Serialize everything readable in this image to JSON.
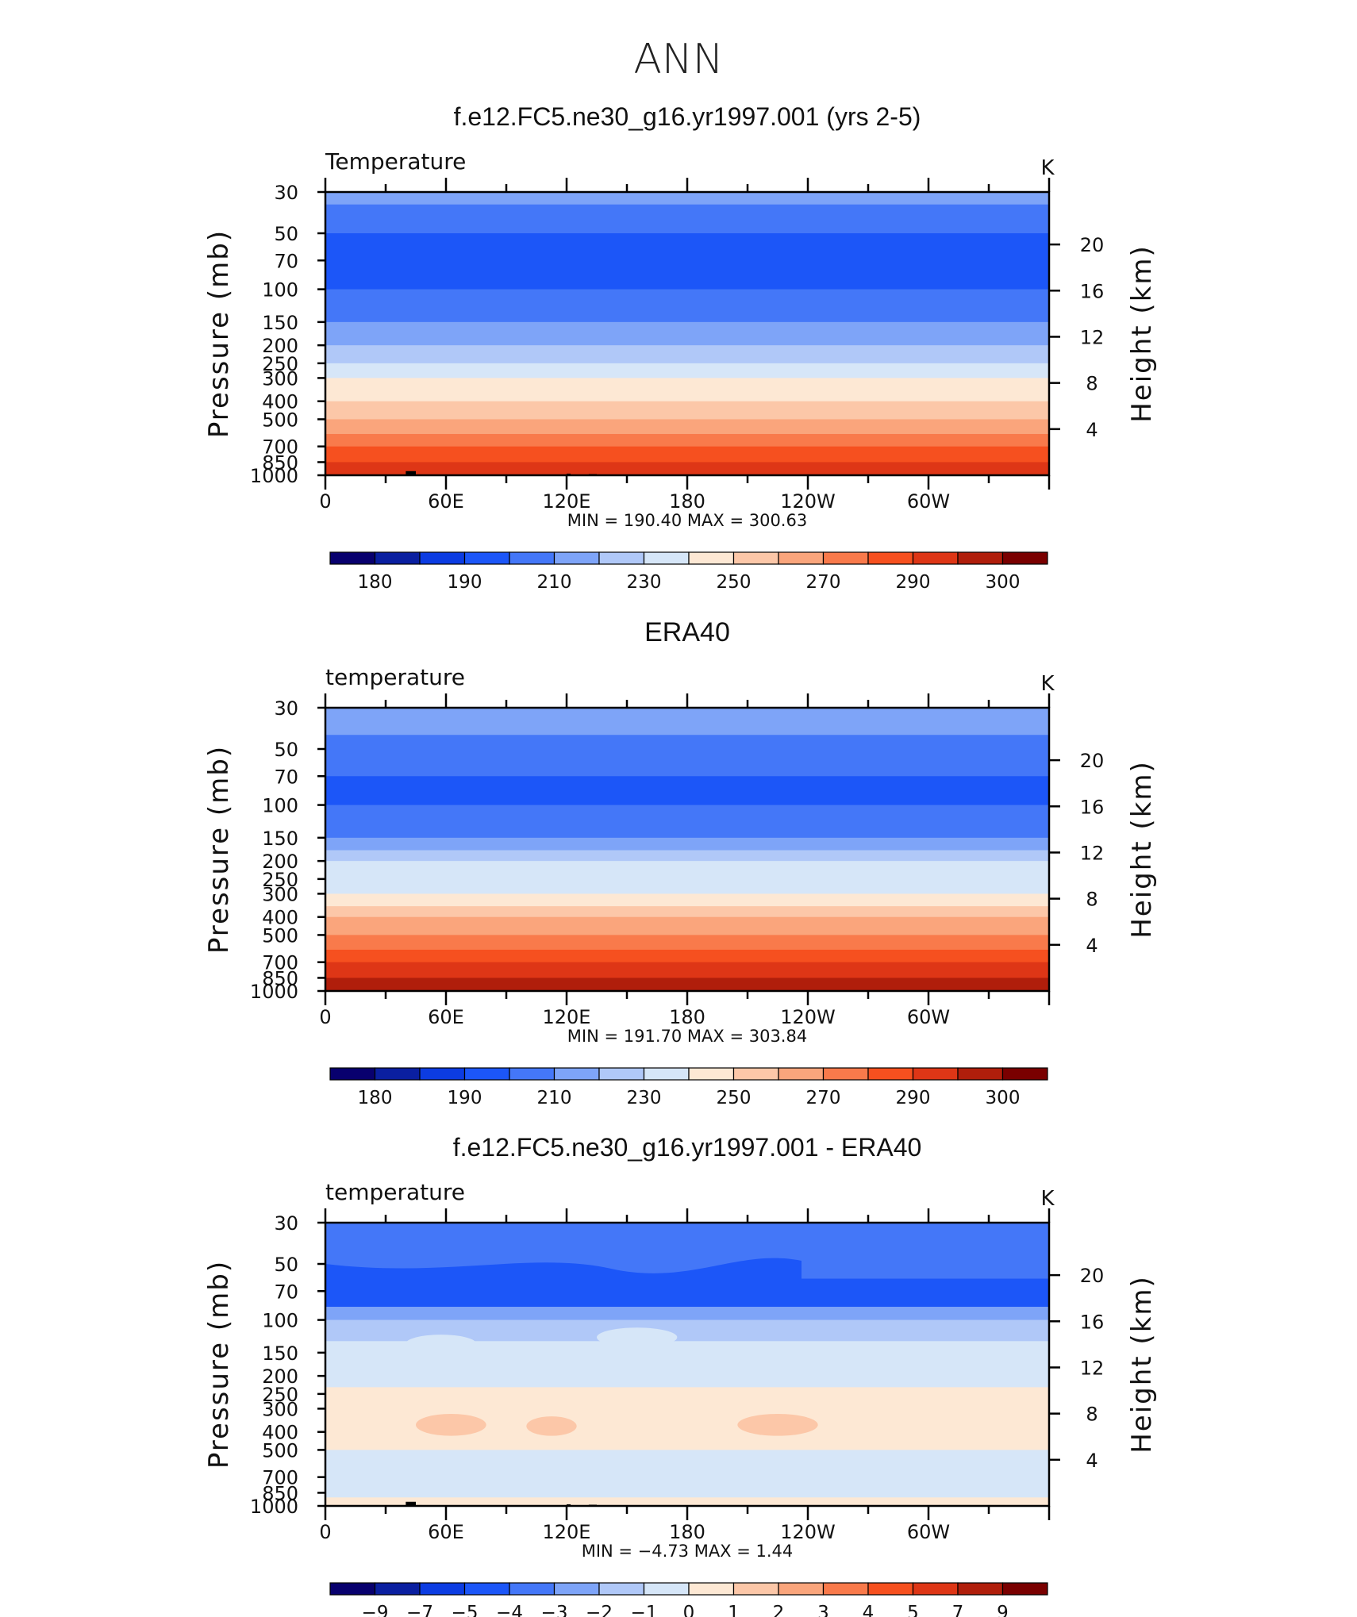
{
  "page": {
    "title": "ANN"
  },
  "colors": {
    "temp_palette": [
      "#08006e",
      "#0a1fa0",
      "#0c3ce2",
      "#1c56f8",
      "#4477f8",
      "#7ea4f8",
      "#b0c8f8",
      "#d6e6f8",
      "#fde8d4",
      "#fcc7a8",
      "#faa57c",
      "#f97a4b",
      "#f6501f",
      "#de3616",
      "#b01e0b",
      "#7a0000"
    ],
    "diff_palette": [
      "#08006e",
      "#0a1fa0",
      "#0c3ce2",
      "#1c56f8",
      "#4477f8",
      "#7ea4f8",
      "#b0c8f8",
      "#d6e6f8",
      "#fde8d4",
      "#fcc7a8",
      "#faa57c",
      "#f97a4b",
      "#f6501f",
      "#de3616",
      "#b01e0b",
      "#7a0000"
    ]
  },
  "chart_data": [
    {
      "type": "heatmap",
      "title": "f.e12.FC5.ne30_g16.yr1997.001 (yrs 2-5)",
      "variable": "Temperature",
      "units": "K",
      "ylabel": "Pressure (mb)",
      "ylabel_right": "Height (km)",
      "x_ticklabels": [
        "0",
        "60E",
        "120E",
        "180",
        "120W",
        "60W"
      ],
      "pressure_ticklabels": [
        "30",
        "50",
        "70",
        "100",
        "150",
        "200",
        "250",
        "300",
        "400",
        "500",
        "700",
        "850",
        "1000"
      ],
      "height_ticklabels": [
        "20",
        "16",
        "12",
        "8",
        "4"
      ],
      "min_max": "MIN  =  190.40   MAX  =  300.63",
      "pressure_levels": [
        30,
        35,
        50,
        70,
        100,
        150,
        175,
        200,
        250,
        300,
        350,
        400,
        500,
        600,
        700,
        850,
        1000
      ],
      "band_colors": [
        "#7ea4f8",
        "#4477f8",
        "#1c56f8",
        "#1c56f8",
        "#4477f8",
        "#7ea4f8",
        "#7ea4f8",
        "#b0c8f8",
        "#d6e6f8",
        "#fde8d4",
        "#fde8d4",
        "#fcc7a8",
        "#faa57c",
        "#f97a4b",
        "#f6501f",
        "#de3616"
      ],
      "colorbar": {
        "levels": [
          "180",
          "190",
          "210",
          "230",
          "250",
          "270",
          "290",
          "300"
        ]
      },
      "topography": true
    },
    {
      "type": "heatmap",
      "title": "ERA40",
      "variable": "temperature",
      "units": "K",
      "ylabel": "Pressure (mb)",
      "ylabel_right": "Height (km)",
      "x_ticklabels": [
        "0",
        "60E",
        "120E",
        "180",
        "120W",
        "60W"
      ],
      "pressure_ticklabels": [
        "30",
        "50",
        "70",
        "100",
        "150",
        "200",
        "250",
        "300",
        "400",
        "500",
        "700",
        "850",
        "1000"
      ],
      "height_ticklabels": [
        "20",
        "16",
        "12",
        "8",
        "4"
      ],
      "min_max": "MIN  =  191.70   MAX  =  303.84",
      "pressure_levels": [
        30,
        42,
        70,
        100,
        150,
        175,
        200,
        250,
        300,
        350,
        400,
        500,
        600,
        700,
        850,
        1000
      ],
      "band_colors": [
        "#7ea4f8",
        "#4477f8",
        "#1c56f8",
        "#4477f8",
        "#7ea4f8",
        "#b0c8f8",
        "#d6e6f8",
        "#d6e6f8",
        "#fde8d4",
        "#fcc7a8",
        "#faa57c",
        "#f97a4b",
        "#f6501f",
        "#de3616",
        "#b01e0b"
      ],
      "colorbar": {
        "levels": [
          "180",
          "190",
          "210",
          "230",
          "250",
          "270",
          "290",
          "300"
        ]
      },
      "topography": false
    },
    {
      "type": "heatmap",
      "title": "f.e12.FC5.ne30_g16.yr1997.001 - ERA40",
      "variable": "temperature",
      "units": "K",
      "ylabel": "Pressure (mb)",
      "ylabel_right": "Height (km)",
      "x_ticklabels": [
        "0",
        "60E",
        "120E",
        "180",
        "120W",
        "60W"
      ],
      "pressure_ticklabels": [
        "30",
        "50",
        "70",
        "100",
        "150",
        "200",
        "250",
        "300",
        "400",
        "500",
        "700",
        "850",
        "1000"
      ],
      "height_ticklabels": [
        "20",
        "16",
        "12",
        "8",
        "4"
      ],
      "min_max": "MIN  =   −4.73   MAX  =    1.44",
      "pressure_levels": [
        30,
        60,
        85,
        100,
        130,
        230,
        300,
        500,
        600,
        900,
        1000
      ],
      "band_colors": [
        "#4477f8",
        "#1c56f8",
        "#7ea4f8",
        "#b0c8f8",
        "#d6e6f8",
        "#fde8d4",
        "#fde8d4",
        "#d6e6f8",
        "#d6e6f8",
        "#fde8d4"
      ],
      "patches": [
        {
          "lon": [
            40,
            75
          ],
          "p": [
            120,
            150
          ],
          "color": "#d6e6f8"
        },
        {
          "lon": [
            135,
            175
          ],
          "p": [
            110,
            140
          ],
          "color": "#d6e6f8"
        },
        {
          "lon": [
            45,
            80
          ],
          "p": [
            320,
            420
          ],
          "color": "#fcc7a8"
        },
        {
          "lon": [
            100,
            125
          ],
          "p": [
            330,
            420
          ],
          "color": "#fcc7a8"
        },
        {
          "lon": [
            205,
            245
          ],
          "p": [
            320,
            420
          ],
          "color": "#fcc7a8"
        }
      ],
      "colorbar": {
        "levels": [
          "−9",
          "−7",
          "−5",
          "−4",
          "−3",
          "−2",
          "−1",
          "0",
          "1",
          "2",
          "3",
          "4",
          "5",
          "7",
          "9"
        ]
      },
      "topography": true
    }
  ]
}
